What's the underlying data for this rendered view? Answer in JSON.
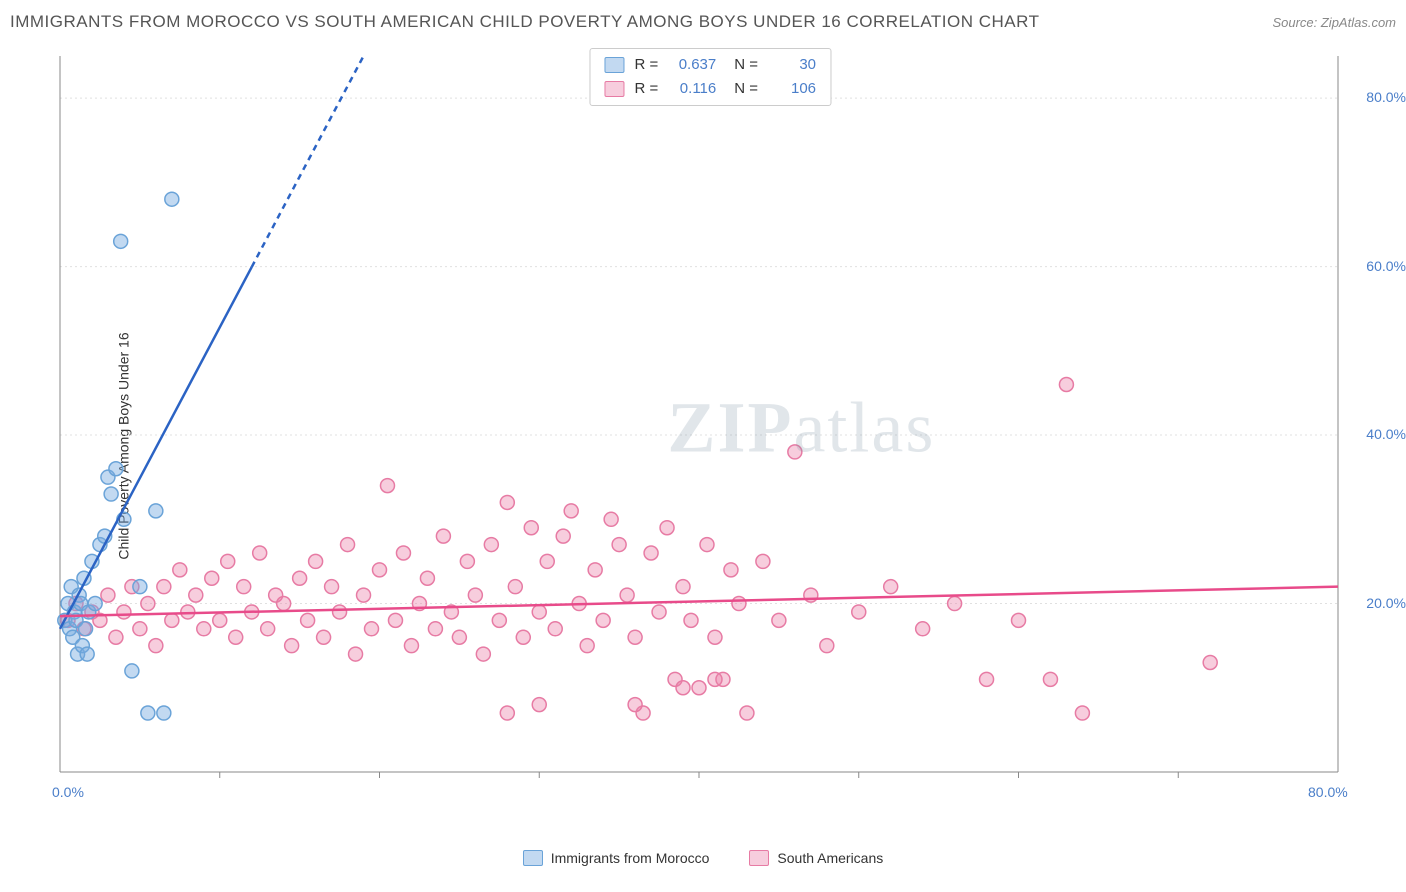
{
  "title": "IMMIGRANTS FROM MOROCCO VS SOUTH AMERICAN CHILD POVERTY AMONG BOYS UNDER 16 CORRELATION CHART",
  "source": "Source: ZipAtlas.com",
  "watermark": "ZIPatlas",
  "y_axis_label": "Child Poverty Among Boys Under 16",
  "chart": {
    "type": "scatter",
    "xlim": [
      0,
      80
    ],
    "ylim": [
      0,
      85
    ],
    "x_ticks": [
      0,
      80
    ],
    "x_tick_labels": [
      "0.0%",
      "80.0%"
    ],
    "y_ticks": [
      20,
      40,
      60,
      80
    ],
    "y_tick_labels": [
      "20.0%",
      "40.0%",
      "60.0%",
      "80.0%"
    ],
    "grid_color": "#e0e0e0",
    "axis_color": "#888888",
    "background": "#ffffff",
    "tick_label_color": "#4a7ec9",
    "marker_radius": 7,
    "marker_stroke_width": 1.5,
    "trendline_width": 2.5
  },
  "series": [
    {
      "name": "Immigrants from Morocco",
      "color_fill": "rgba(120,170,225,0.45)",
      "color_stroke": "#6aa3d8",
      "trend_color": "#2b63c4",
      "R": "0.637",
      "N": "30",
      "trendline": {
        "x1": 0,
        "y1": 17,
        "x2": 19,
        "y2": 85,
        "dashed_after_x": 12
      },
      "points": [
        [
          0.3,
          18
        ],
        [
          0.5,
          20
        ],
        [
          0.6,
          17
        ],
        [
          0.7,
          22
        ],
        [
          0.8,
          16
        ],
        [
          0.9,
          19
        ],
        [
          1.0,
          18
        ],
        [
          1.1,
          14
        ],
        [
          1.2,
          21
        ],
        [
          1.3,
          20
        ],
        [
          1.4,
          15
        ],
        [
          1.5,
          23
        ],
        [
          1.6,
          17
        ],
        [
          1.8,
          19
        ],
        [
          2.0,
          25
        ],
        [
          2.2,
          20
        ],
        [
          2.5,
          27
        ],
        [
          3.0,
          35
        ],
        [
          3.2,
          33
        ],
        [
          3.5,
          36
        ],
        [
          4.0,
          30
        ],
        [
          4.5,
          12
        ],
        [
          5.0,
          22
        ],
        [
          5.5,
          7
        ],
        [
          6.0,
          31
        ],
        [
          6.5,
          7
        ],
        [
          7.0,
          68
        ],
        [
          3.8,
          63
        ],
        [
          2.8,
          28
        ],
        [
          1.7,
          14
        ]
      ]
    },
    {
      "name": "South Americans",
      "color_fill": "rgba(235,130,170,0.40)",
      "color_stroke": "#e77ba4",
      "trend_color": "#e84b8a",
      "R": "0.116",
      "N": "106",
      "trendline": {
        "x1": 0,
        "y1": 18.5,
        "x2": 80,
        "y2": 22
      },
      "points": [
        [
          0.5,
          18
        ],
        [
          1,
          20
        ],
        [
          1.5,
          17
        ],
        [
          2,
          19
        ],
        [
          2.5,
          18
        ],
        [
          3,
          21
        ],
        [
          3.5,
          16
        ],
        [
          4,
          19
        ],
        [
          4.5,
          22
        ],
        [
          5,
          17
        ],
        [
          5.5,
          20
        ],
        [
          6,
          15
        ],
        [
          6.5,
          22
        ],
        [
          7,
          18
        ],
        [
          7.5,
          24
        ],
        [
          8,
          19
        ],
        [
          8.5,
          21
        ],
        [
          9,
          17
        ],
        [
          9.5,
          23
        ],
        [
          10,
          18
        ],
        [
          10.5,
          25
        ],
        [
          11,
          16
        ],
        [
          11.5,
          22
        ],
        [
          12,
          19
        ],
        [
          12.5,
          26
        ],
        [
          13,
          17
        ],
        [
          13.5,
          21
        ],
        [
          14,
          20
        ],
        [
          14.5,
          15
        ],
        [
          15,
          23
        ],
        [
          15.5,
          18
        ],
        [
          16,
          25
        ],
        [
          16.5,
          16
        ],
        [
          17,
          22
        ],
        [
          17.5,
          19
        ],
        [
          18,
          27
        ],
        [
          18.5,
          14
        ],
        [
          19,
          21
        ],
        [
          19.5,
          17
        ],
        [
          20,
          24
        ],
        [
          20.5,
          34
        ],
        [
          21,
          18
        ],
        [
          21.5,
          26
        ],
        [
          22,
          15
        ],
        [
          22.5,
          20
        ],
        [
          23,
          23
        ],
        [
          23.5,
          17
        ],
        [
          24,
          28
        ],
        [
          24.5,
          19
        ],
        [
          25,
          16
        ],
        [
          25.5,
          25
        ],
        [
          26,
          21
        ],
        [
          26.5,
          14
        ],
        [
          27,
          27
        ],
        [
          27.5,
          18
        ],
        [
          28,
          32
        ],
        [
          28.5,
          22
        ],
        [
          29,
          16
        ],
        [
          29.5,
          29
        ],
        [
          30,
          19
        ],
        [
          30.5,
          25
        ],
        [
          31,
          17
        ],
        [
          31.5,
          28
        ],
        [
          32,
          31
        ],
        [
          32.5,
          20
        ],
        [
          33,
          15
        ],
        [
          33.5,
          24
        ],
        [
          34,
          18
        ],
        [
          34.5,
          30
        ],
        [
          35,
          27
        ],
        [
          35.5,
          21
        ],
        [
          36,
          16
        ],
        [
          36.5,
          7
        ],
        [
          37,
          26
        ],
        [
          37.5,
          19
        ],
        [
          38,
          29
        ],
        [
          38.5,
          11
        ],
        [
          39,
          22
        ],
        [
          39.5,
          18
        ],
        [
          40,
          10
        ],
        [
          40.5,
          27
        ],
        [
          41,
          16
        ],
        [
          41.5,
          11
        ],
        [
          42,
          24
        ],
        [
          42.5,
          20
        ],
        [
          43,
          7
        ],
        [
          44,
          25
        ],
        [
          45,
          18
        ],
        [
          46,
          38
        ],
        [
          47,
          21
        ],
        [
          48,
          15
        ],
        [
          50,
          19
        ],
        [
          52,
          22
        ],
        [
          54,
          17
        ],
        [
          56,
          20
        ],
        [
          58,
          11
        ],
        [
          60,
          18
        ],
        [
          62,
          11
        ],
        [
          64,
          7
        ],
        [
          39,
          10
        ],
        [
          41,
          11
        ],
        [
          28,
          7
        ],
        [
          30,
          8
        ],
        [
          36,
          8
        ],
        [
          63,
          46
        ],
        [
          72,
          13
        ]
      ]
    }
  ],
  "correlation_box": {
    "rows": [
      {
        "swatch_fill": "rgba(120,170,225,0.45)",
        "swatch_stroke": "#6aa3d8",
        "R_label": "R =",
        "R": "0.637",
        "N_label": "N =",
        "N": "30"
      },
      {
        "swatch_fill": "rgba(235,130,170,0.40)",
        "swatch_stroke": "#e77ba4",
        "R_label": "R =",
        "R": "0.116",
        "N_label": "N =",
        "N": "106"
      }
    ]
  },
  "legend": [
    {
      "swatch_fill": "rgba(120,170,225,0.45)",
      "swatch_stroke": "#6aa3d8",
      "label": "Immigrants from Morocco"
    },
    {
      "swatch_fill": "rgba(235,130,170,0.40)",
      "swatch_stroke": "#e77ba4",
      "label": "South Americans"
    }
  ]
}
